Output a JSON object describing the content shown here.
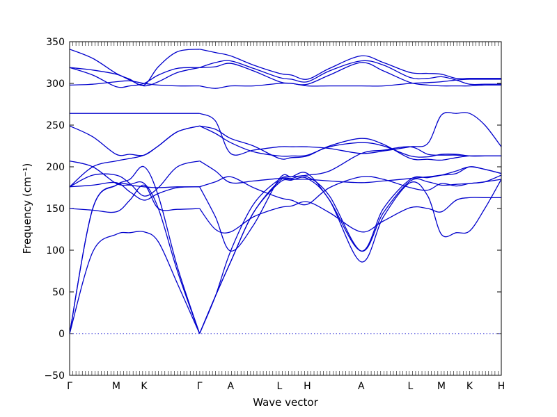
{
  "chart_data": {
    "type": "line",
    "title": "",
    "xlabel": "Wave vector",
    "ylabel": "Frequency (cm⁻¹)",
    "ylim": [
      -50,
      350
    ],
    "yticks": [
      -50,
      0,
      50,
      100,
      150,
      200,
      250,
      300,
      350
    ],
    "xlim": [
      0,
      13.62
    ],
    "high_symmetry_points": [
      {
        "label": "Γ",
        "x": 0
      },
      {
        "label": "M",
        "x": 1.47
      },
      {
        "label": "K",
        "x": 2.35
      },
      {
        "label": "Γ",
        "x": 4.1
      },
      {
        "label": "A",
        "x": 5.08
      },
      {
        "label": "L",
        "x": 6.62
      },
      {
        "label": "H",
        "x": 7.5
      },
      {
        "label": "A",
        "x": 9.2
      },
      {
        "label": "L",
        "x": 10.75
      },
      {
        "label": "M",
        "x": 11.73
      },
      {
        "label": "K",
        "x": 12.62
      },
      {
        "label": "H",
        "x": 13.62
      }
    ],
    "zero_line": 0,
    "grid": false,
    "line_color": "#0000cc",
    "series": [
      {
        "x": [
          0,
          0.73,
          1.47,
          1.9,
          2.35,
          2.8,
          3.4,
          4.1
        ],
        "y": [
          0,
          98,
          119,
          121,
          122,
          110,
          60,
          0
        ]
      },
      {
        "x": [
          4.1,
          4.6,
          5.08,
          5.8,
          6.62,
          7.0,
          7.5,
          8.2,
          9.2,
          9.9,
          10.75,
          11.3,
          11.73,
          12.2,
          12.62,
          13.1,
          13.62
        ],
        "y": [
          0,
          45,
          86,
          145,
          181,
          184,
          186,
          160,
          86,
          140,
          181,
          165,
          119,
          121,
          123,
          150,
          185
        ]
      },
      {
        "x": [
          0,
          0.73,
          1.47,
          1.9,
          2.35,
          2.8,
          3.4,
          4.1
        ],
        "y": [
          0,
          150,
          178,
          179,
          180,
          150,
          75,
          0
        ]
      },
      {
        "x": [
          4.1,
          4.6,
          5.08,
          5.8,
          6.62,
          7.0,
          7.5,
          8.2,
          9.2,
          9.9,
          10.75,
          11.3,
          11.73,
          12.2,
          12.62,
          13.1,
          13.62
        ],
        "y": [
          0,
          45,
          86,
          145,
          183,
          186,
          188,
          165,
          99,
          145,
          183,
          182,
          178,
          179,
          180,
          182,
          185
        ]
      },
      {
        "x": [
          0,
          0.73,
          1.47,
          1.9,
          2.35,
          2.8,
          3.4,
          4.1
        ],
        "y": [
          0,
          150,
          178,
          185,
          200,
          165,
          80,
          0
        ]
      },
      {
        "x": [
          4.1,
          4.6,
          5.08,
          5.8,
          6.62,
          7.0,
          7.5,
          8.2,
          9.2,
          9.9,
          10.75,
          11.3,
          11.73,
          12.2,
          12.62,
          13.1,
          13.62
        ],
        "y": [
          0,
          45,
          99,
          155,
          185,
          188,
          192,
          160,
          99,
          150,
          185,
          187,
          190,
          195,
          200,
          197,
          192
        ]
      },
      {
        "x": [
          0,
          0.73,
          1.47,
          1.9,
          2.35,
          2.8,
          3.4,
          4.1
        ],
        "y": [
          150,
          148,
          146,
          160,
          178,
          150,
          149,
          150
        ]
      },
      {
        "x": [
          4.1,
          4.6,
          5.08,
          5.8,
          6.62,
          7.0,
          7.5,
          8.2,
          9.2,
          9.9,
          10.75,
          11.3,
          11.73,
          12.2,
          12.62,
          13.1,
          13.62
        ],
        "y": [
          150,
          125,
          122,
          140,
          151,
          153,
          158,
          145,
          122,
          135,
          151,
          150,
          146,
          160,
          163,
          163,
          163
        ]
      },
      {
        "x": [
          0,
          0.73,
          1.47,
          1.9,
          2.35,
          2.8,
          3.4,
          4.1
        ],
        "y": [
          176,
          178,
          181,
          170,
          160,
          168,
          175,
          176
        ]
      },
      {
        "x": [
          4.1,
          4.6,
          5.08,
          5.8,
          6.62,
          7.0,
          7.5,
          8.2,
          9.2,
          9.9,
          10.75,
          11.3,
          11.73,
          12.2,
          12.62,
          13.1,
          13.62
        ],
        "y": [
          176,
          182,
          188,
          175,
          163,
          160,
          155,
          175,
          188,
          185,
          175,
          172,
          180,
          177,
          180,
          182,
          190
        ]
      },
      {
        "x": [
          0,
          0.73,
          1.47,
          1.9,
          2.35,
          2.8,
          3.4,
          4.1
        ],
        "y": [
          176,
          190,
          190,
          180,
          165,
          175,
          200,
          207
        ]
      },
      {
        "x": [
          4.1,
          4.6,
          5.08,
          5.8,
          6.62,
          7.0,
          7.5,
          8.2,
          9.2,
          9.9,
          10.75,
          11.3,
          11.73,
          12.2,
          12.62,
          13.1,
          13.62
        ],
        "y": [
          207,
          195,
          181,
          183,
          186,
          185,
          185,
          183,
          181,
          183,
          186,
          188,
          190,
          192,
          200,
          197,
          192
        ]
      },
      {
        "x": [
          0,
          0.73,
          1.47,
          1.9,
          2.35,
          2.8,
          3.4,
          4.1
        ],
        "y": [
          207,
          200,
          180,
          178,
          176,
          175,
          176,
          176
        ]
      },
      {
        "x": [
          4.1,
          4.6,
          5.08,
          5.8,
          6.62,
          7.0,
          7.5,
          8.2,
          9.2,
          9.9,
          10.75,
          11.3,
          11.73,
          12.2,
          12.62,
          13.1,
          13.62
        ],
        "y": [
          176,
          140,
          99,
          130,
          186,
          188,
          190,
          195,
          216,
          220,
          224,
          215,
          214,
          214,
          213,
          213,
          213
        ]
      },
      {
        "x": [
          0,
          0.73,
          1.47,
          1.9,
          2.35,
          2.8,
          3.4,
          4.1
        ],
        "y": [
          176,
          200,
          207,
          210,
          214,
          225,
          242,
          249
        ]
      },
      {
        "x": [
          4.1,
          4.6,
          5.08,
          5.8,
          6.62,
          7.0,
          7.5,
          8.2,
          9.2,
          9.9,
          10.75,
          11.3,
          11.73,
          12.2,
          12.62,
          13.1,
          13.62
        ],
        "y": [
          249,
          245,
          234,
          225,
          210,
          211,
          213,
          225,
          234,
          227,
          210,
          209,
          208,
          211,
          213,
          213,
          213
        ]
      },
      {
        "x": [
          0,
          0.73,
          1.47,
          1.9,
          2.35,
          2.8,
          3.4,
          4.1
        ],
        "y": [
          249,
          236,
          215,
          215,
          214,
          225,
          242,
          249
        ]
      },
      {
        "x": [
          4.1,
          4.6,
          5.08,
          5.8,
          6.62,
          7.0,
          7.5,
          8.2,
          9.2,
          9.9,
          10.75,
          11.3,
          11.73,
          12.2,
          12.62,
          13.1,
          13.62
        ],
        "y": [
          249,
          240,
          229,
          218,
          213,
          213,
          214,
          224,
          229,
          225,
          213,
          212,
          215,
          215,
          213,
          213,
          213
        ]
      },
      {
        "x": [
          0,
          0.73,
          1.47,
          1.9,
          2.35,
          2.8,
          3.4,
          4.1
        ],
        "y": [
          264,
          264,
          264,
          264,
          264,
          264,
          264,
          264
        ]
      },
      {
        "x": [
          4.1,
          4.6,
          5.08,
          5.8,
          6.62,
          7.0,
          7.5,
          8.2,
          9.2,
          9.9,
          10.75,
          11.3,
          11.73,
          12.2,
          12.62,
          13.1,
          13.62
        ],
        "y": [
          264,
          255,
          216,
          220,
          224,
          224,
          224,
          222,
          216,
          219,
          224,
          228,
          262,
          264,
          264,
          250,
          224
        ]
      },
      {
        "x": [
          0,
          0.73,
          1.47,
          1.9,
          2.35,
          2.8,
          3.4,
          4.1
        ],
        "y": [
          298,
          299,
          302,
          303,
          300,
          298,
          297,
          297
        ]
      },
      {
        "x": [
          4.1,
          4.6,
          5.08,
          5.8,
          6.62,
          7.0,
          7.5,
          8.2,
          9.2,
          9.9,
          10.75,
          11.3,
          11.73,
          12.2,
          12.62,
          13.1,
          13.62
        ],
        "y": [
          297,
          294,
          297,
          297,
          300,
          300,
          297,
          297,
          297,
          297,
          300,
          301,
          302,
          304,
          305,
          305,
          305
        ]
      },
      {
        "x": [
          0,
          0.73,
          1.47,
          1.9,
          2.35,
          2.8,
          3.4,
          4.1
        ],
        "y": [
          319,
          310,
          296,
          297,
          300,
          310,
          318,
          319
        ]
      },
      {
        "x": [
          4.1,
          4.6,
          5.08,
          5.8,
          6.62,
          7.0,
          7.5,
          8.2,
          9.2,
          9.9,
          10.75,
          11.3,
          11.73,
          12.2,
          12.62,
          13.1,
          13.62
        ],
        "y": [
          319,
          320,
          324,
          315,
          302,
          300,
          299,
          310,
          325,
          315,
          301,
          298,
          297,
          297,
          297,
          298,
          298
        ]
      },
      {
        "x": [
          0,
          0.73,
          1.47,
          1.9,
          2.35,
          2.8,
          3.4,
          4.1
        ],
        "y": [
          319,
          316,
          311,
          304,
          297,
          302,
          313,
          319
        ]
      },
      {
        "x": [
          4.1,
          4.6,
          5.08,
          5.8,
          6.62,
          7.0,
          7.5,
          8.2,
          9.2,
          9.9,
          10.75,
          11.3,
          11.73,
          12.2,
          12.62,
          13.1,
          13.62
        ],
        "y": [
          319,
          325,
          327,
          318,
          307,
          305,
          302,
          315,
          327,
          322,
          307,
          306,
          308,
          304,
          299,
          299,
          299
        ]
      },
      {
        "x": [
          0,
          0.73,
          1.47,
          1.9,
          2.35,
          2.8,
          3.4,
          4.1
        ],
        "y": [
          341,
          330,
          312,
          305,
          298,
          320,
          338,
          341
        ]
      },
      {
        "x": [
          4.1,
          4.6,
          5.08,
          5.8,
          6.62,
          7.0,
          7.5,
          8.2,
          9.2,
          9.9,
          10.75,
          11.3,
          11.73,
          12.2,
          12.62,
          13.1,
          13.62
        ],
        "y": [
          341,
          337,
          333,
          322,
          312,
          310,
          305,
          318,
          333,
          325,
          313,
          312,
          311,
          306,
          306,
          306,
          306
        ]
      }
    ]
  }
}
